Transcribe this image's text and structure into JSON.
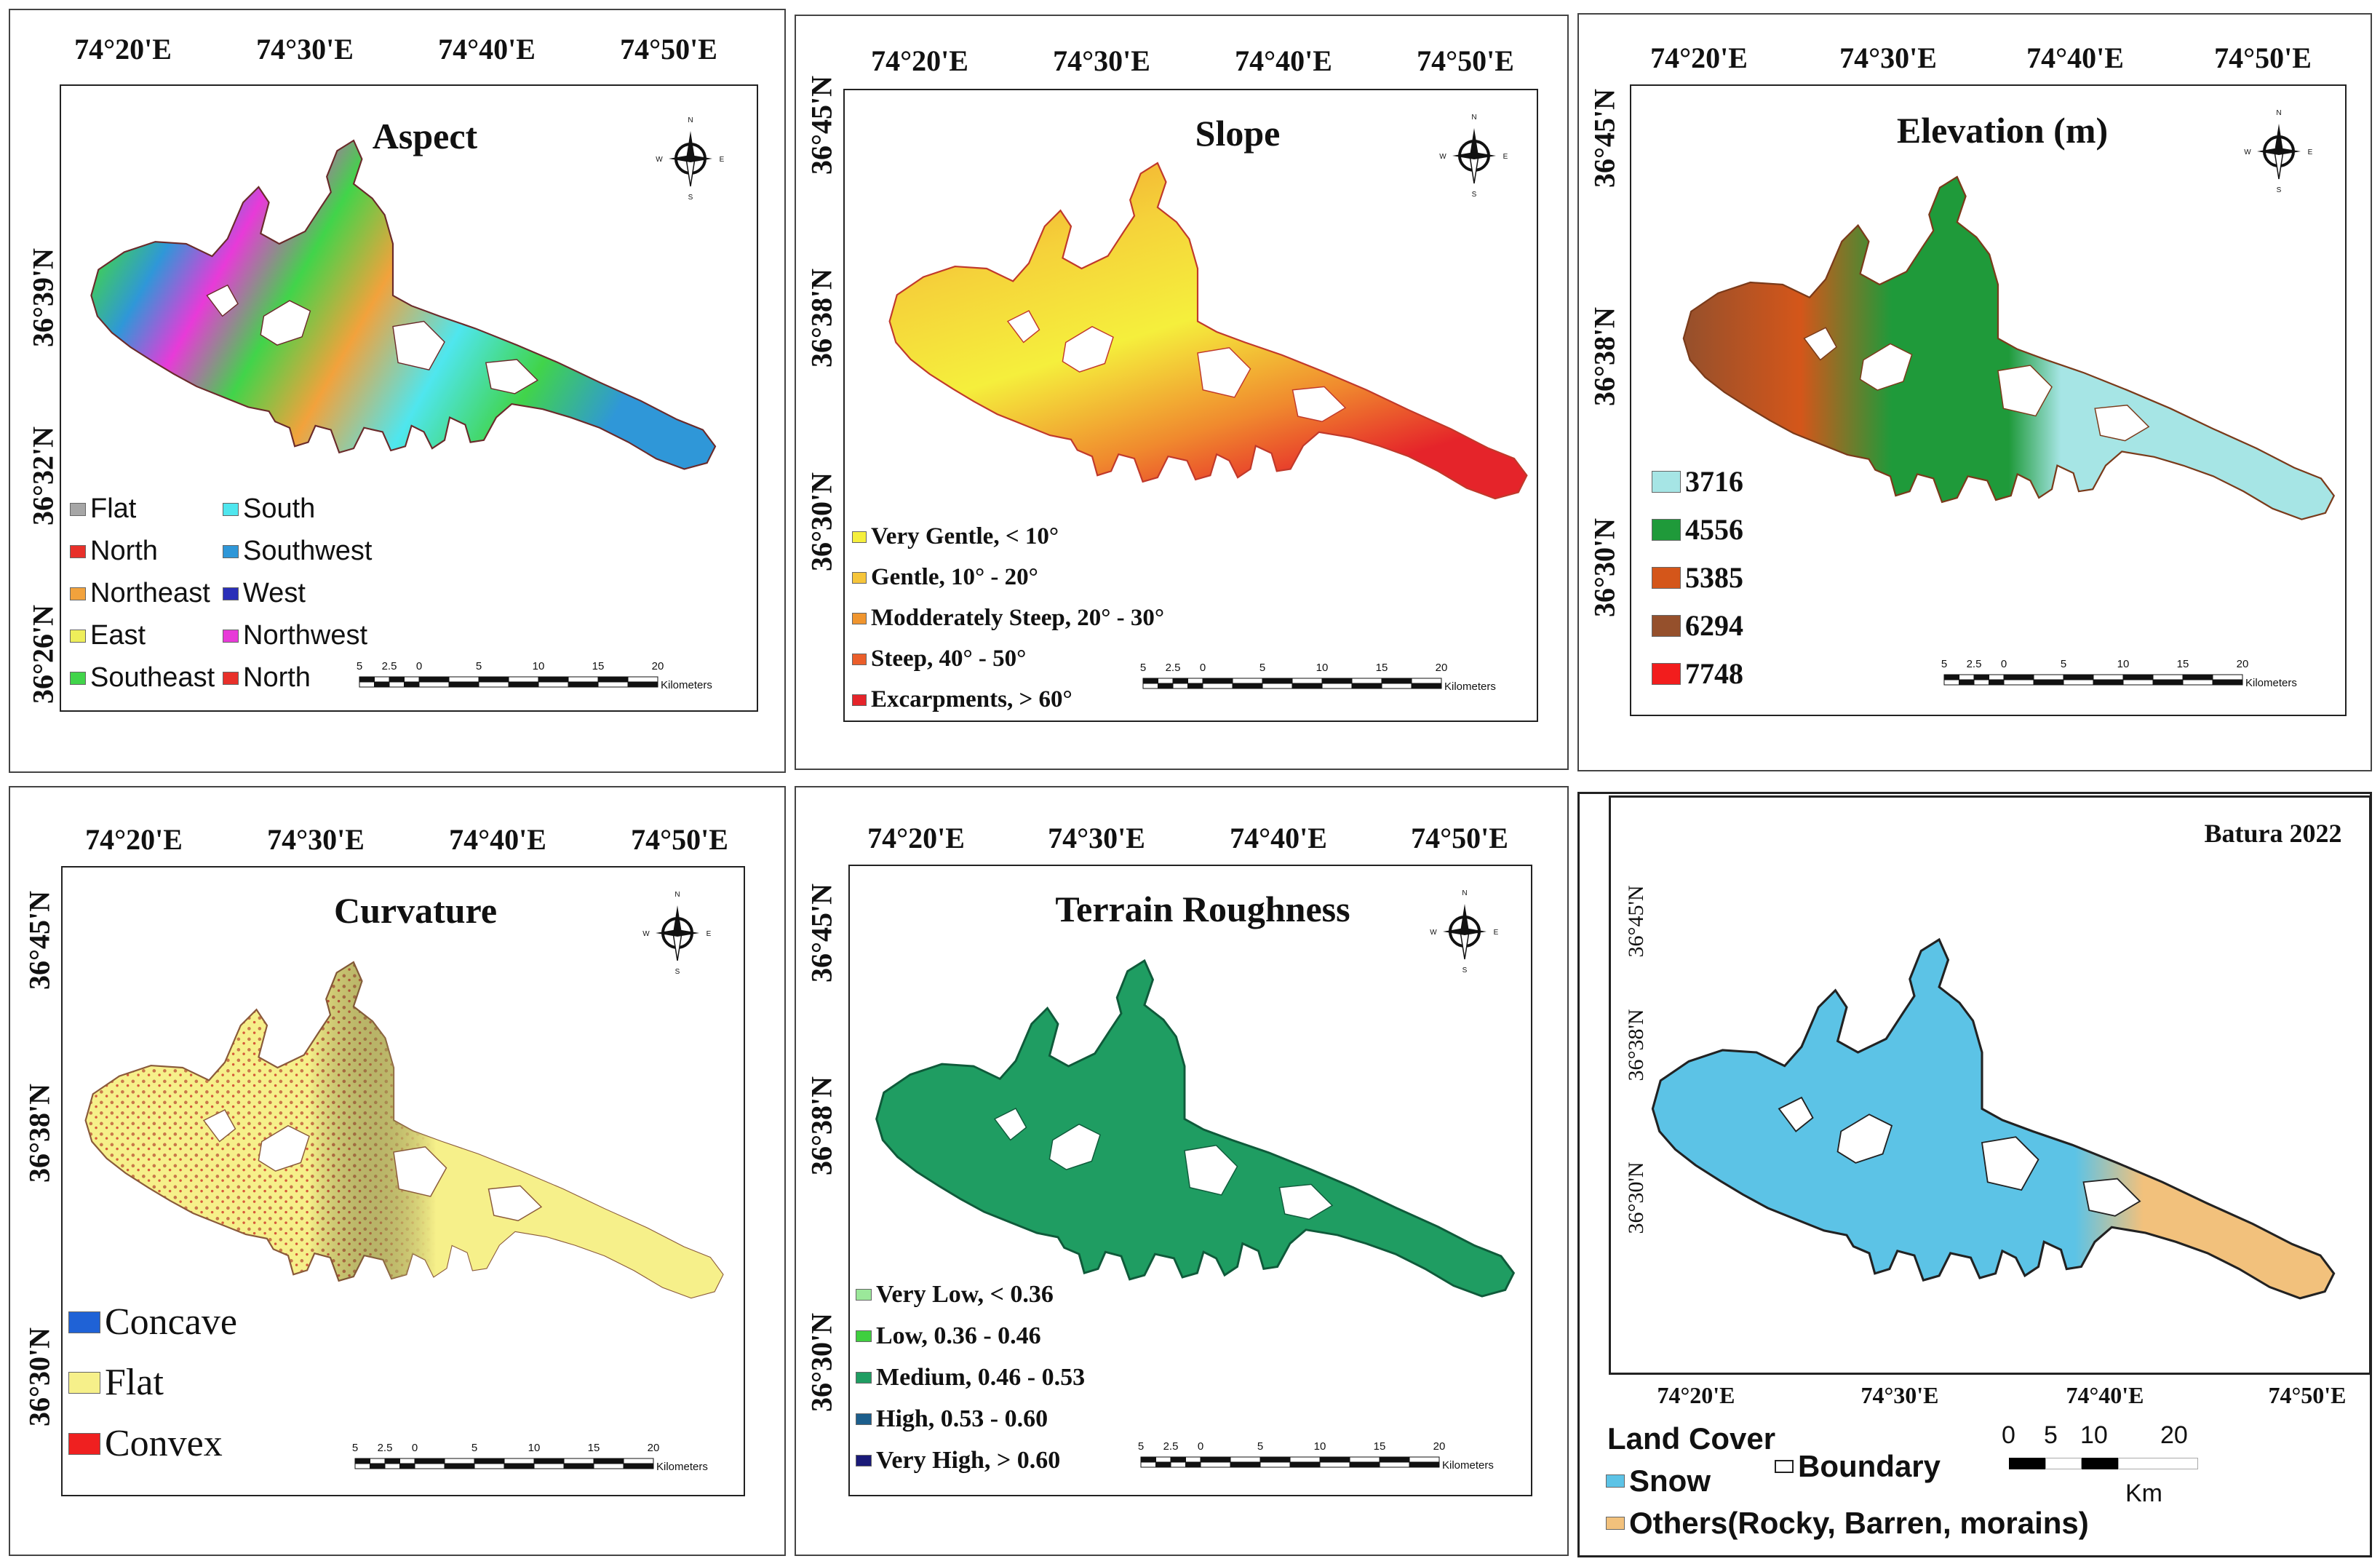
{
  "panels": {
    "aspect": {
      "title": "Aspect",
      "lon_labels": [
        "74°20'E",
        "74°30'E",
        "74°40'E",
        "74°50'E"
      ],
      "lat_labels": [
        "36°39'N",
        "36°32'N",
        "36°26'N"
      ],
      "legend": [
        {
          "label": "Flat",
          "color": "#a6a6a6"
        },
        {
          "label": "North",
          "color": "#e8302a"
        },
        {
          "label": "Northeast",
          "color": "#f2a23c"
        },
        {
          "label": "East",
          "color": "#eeee5a"
        },
        {
          "label": "Southeast",
          "color": "#41d44a"
        },
        {
          "label": "South",
          "color": "#4fe6ee"
        },
        {
          "label": "Southwest",
          "color": "#2f97d8"
        },
        {
          "label": "West",
          "color": "#2a2fb8"
        },
        {
          "label": "Northwest",
          "color": "#e83ad8"
        },
        {
          "label": "North",
          "color": "#e8302a"
        }
      ]
    },
    "slope": {
      "title": "Slope",
      "lon_labels": [
        "74°20'E",
        "74°30'E",
        "74°40'E",
        "74°50'E"
      ],
      "lat_labels": [
        "36°45'N",
        "36°38'N",
        "36°30'N"
      ],
      "legend": [
        {
          "label": "Very Gentle, < 10°",
          "color": "#f5ef3c"
        },
        {
          "label": "Gentle, 10° - 20°",
          "color": "#f6c53a"
        },
        {
          "label": "Modderately Steep, 20° - 30°",
          "color": "#f0952e"
        },
        {
          "label": "Steep, 40° - 50°",
          "color": "#eb5e2a"
        },
        {
          "label": "Excarpments, > 60°",
          "color": "#e5242a"
        }
      ]
    },
    "elevation": {
      "title": "Elevation (m)",
      "lon_labels": [
        "74°20'E",
        "74°30'E",
        "74°40'E",
        "74°50'E"
      ],
      "lat_labels": [
        "36°45'N",
        "36°38'N",
        "36°30'N"
      ],
      "legend": [
        {
          "label": "3716",
          "color": "#a6e5e5"
        },
        {
          "label": "4556",
          "color": "#1f9a3a"
        },
        {
          "label": "5385",
          "color": "#d4561a"
        },
        {
          "label": "6294",
          "color": "#95502c"
        },
        {
          "label": "7748",
          "color": "#f21d1d"
        }
      ]
    },
    "curvature": {
      "title": "Curvature",
      "lon_labels": [
        "74°20'E",
        "74°30'E",
        "74°40'E",
        "74°50'E"
      ],
      "lat_labels": [
        "36°45'N",
        "36°38'N",
        "36°30'N"
      ],
      "legend": [
        {
          "label": "Concave",
          "color": "#1f62d6"
        },
        {
          "label": "Flat",
          "color": "#f6f08a"
        },
        {
          "label": "Convex",
          "color": "#ef2020"
        }
      ]
    },
    "roughness": {
      "title": "Terrain Roughness",
      "lon_labels": [
        "74°20'E",
        "74°30'E",
        "74°40'E",
        "74°50'E"
      ],
      "lat_labels": [
        "36°45'N",
        "36°38'N",
        "36°30'N"
      ],
      "legend": [
        {
          "label": "Very Low, < 0.36",
          "color": "#9be89a"
        },
        {
          "label": "Low, 0.36 - 0.46",
          "color": "#3fcf3f"
        },
        {
          "label": "Medium, 0.46 - 0.53",
          "color": "#1f9d62"
        },
        {
          "label": "High, 0.53 - 0.60",
          "color": "#1c5e8c"
        },
        {
          "label": "Very High, > 0.60",
          "color": "#1a1a78"
        }
      ]
    },
    "landcover": {
      "title": "Batura 2022",
      "lon_labels": [
        "74°20'E",
        "74°30'E",
        "74°40'E",
        "74°50'E"
      ],
      "lat_labels": [
        "36°45'N",
        "36°38'N",
        "36°30'N"
      ],
      "legend_title": "Land Cover",
      "legend": [
        {
          "label": "Snow",
          "color": "#5cc3e6"
        },
        {
          "label": "Boundary",
          "color": "#ffffff"
        },
        {
          "label": "Others(Rocky, Barren, morains)",
          "color": "#f2c17c"
        }
      ],
      "scale_ticks": [
        "0",
        "5",
        "10",
        "20"
      ],
      "scale_unit": "Km"
    }
  },
  "scalebar": {
    "ticks": [
      "5",
      "2.5",
      "0",
      "5",
      "10",
      "15",
      "20"
    ],
    "unit": "Kilometers"
  },
  "compass": {
    "n": "N",
    "s": "S",
    "e": "E",
    "w": "W"
  }
}
